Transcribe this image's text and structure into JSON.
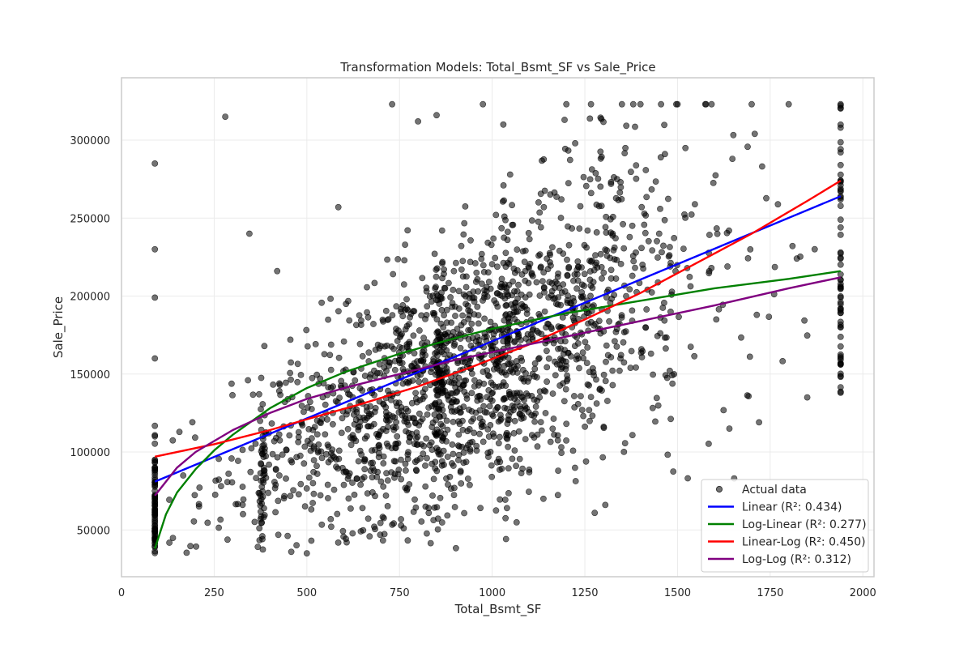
{
  "chart_data": {
    "type": "scatter",
    "title": "Transformation Models: Total_Bsmt_SF vs Sale_Price",
    "xlabel": "Total_Bsmt_SF",
    "ylabel": "Sale_Price",
    "xlim": [
      0,
      2030
    ],
    "ylim": [
      20000,
      340000
    ],
    "x_ticks": [
      0,
      250,
      500,
      750,
      1000,
      1250,
      1500,
      1750,
      2000
    ],
    "y_ticks": [
      50000,
      100000,
      150000,
      200000,
      250000,
      300000
    ],
    "x_tick_labels": [
      "0",
      "250",
      "500",
      "750",
      "1000",
      "1250",
      "1500",
      "1750",
      "2000"
    ],
    "y_tick_labels": [
      "50000",
      "100000",
      "150000",
      "200000",
      "250000",
      "300000"
    ],
    "grid": true,
    "legend_position": "bottom-right",
    "scatter": {
      "name": "Actual data",
      "color": "#000000",
      "x_range": [
        90,
        1940
      ],
      "y_range": [
        35000,
        323000
      ],
      "points_approx": 2000,
      "sample_points": [
        [
          90,
          285000
        ],
        [
          90,
          230000
        ],
        [
          90,
          199000
        ],
        [
          90,
          160000
        ],
        [
          90,
          110000
        ],
        [
          90,
          95000
        ],
        [
          90,
          60000
        ],
        [
          90,
          45000
        ],
        [
          90,
          39000
        ],
        [
          280,
          315000
        ],
        [
          345,
          240000
        ],
        [
          420,
          216000
        ],
        [
          500,
          35000
        ],
        [
          585,
          257000
        ],
        [
          650,
          64000
        ],
        [
          730,
          323000
        ],
        [
          800,
          312000
        ],
        [
          850,
          316000
        ],
        [
          975,
          323000
        ],
        [
          1030,
          310000
        ],
        [
          1040,
          64000
        ],
        [
          1100,
          87000
        ],
        [
          1200,
          323000
        ],
        [
          1350,
          323000
        ],
        [
          1400,
          323000
        ],
        [
          1500,
          323000
        ],
        [
          1700,
          323000
        ],
        [
          1800,
          323000
        ],
        [
          1940,
          323000
        ],
        [
          1940,
          284000
        ],
        [
          1940,
          244000
        ],
        [
          1940,
          180000
        ],
        [
          1940,
          157000
        ],
        [
          1940,
          138000
        ],
        [
          1850,
          135000
        ],
        [
          1640,
          115000
        ],
        [
          1720,
          119000
        ]
      ]
    },
    "series": [
      {
        "name": "Linear (R²: 0.434)",
        "color": "#0000ff",
        "x": [
          90,
          1940
        ],
        "y": [
          81000,
          264000
        ]
      },
      {
        "name": "Log-Linear (R²: 0.277)",
        "color": "#008000",
        "x": [
          90,
          120,
          150,
          200,
          250,
          300,
          400,
          500,
          600,
          750,
          900,
          1000,
          1200,
          1400,
          1600,
          1800,
          1940
        ],
        "y": [
          38000,
          60000,
          74000,
          89000,
          101000,
          111000,
          128000,
          141000,
          151000,
          163000,
          173000,
          179000,
          189000,
          197000,
          205000,
          211000,
          216000
        ]
      },
      {
        "name": "Linear-Log (R²: 0.450)",
        "color": "#ff0000",
        "x": [
          90,
          250,
          400,
          500,
          650,
          800,
          950,
          1100,
          1250,
          1400,
          1550,
          1700,
          1850,
          1940
        ],
        "y": [
          97000,
          105000,
          114000,
          121000,
          131000,
          142000,
          155000,
          169000,
          185000,
          202000,
          221000,
          240000,
          261000,
          274000
        ]
      },
      {
        "name": "Log-Log (R²: 0.312)",
        "color": "#800080",
        "x": [
          90,
          150,
          200,
          300,
          400,
          500,
          600,
          750,
          900,
          1000,
          1200,
          1400,
          1600,
          1800,
          1940
        ],
        "y": [
          72000,
          90000,
          100000,
          114000,
          125000,
          134000,
          141000,
          150000,
          159000,
          164000,
          174000,
          184000,
          194000,
          205000,
          212000
        ]
      }
    ]
  }
}
